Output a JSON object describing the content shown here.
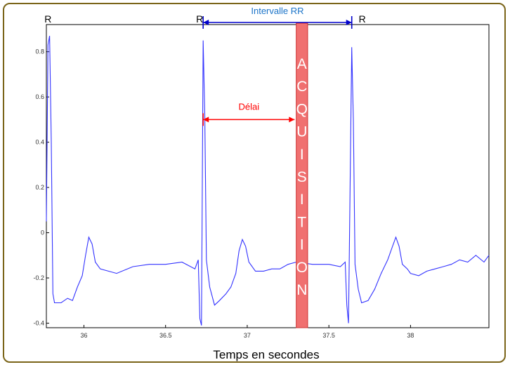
{
  "chart_data": {
    "type": "line",
    "title": "",
    "xlabel": "Temps en secondes",
    "ylabel": "",
    "xlim": [
      35.77,
      38.48
    ],
    "ylim": [
      -0.42,
      0.92
    ],
    "x_ticks": [
      36,
      36.5,
      37,
      37.5,
      38
    ],
    "x_tick_labels": [
      "36",
      "36.5",
      "37",
      "37.5",
      "38"
    ],
    "y_ticks": [
      -0.4,
      -0.2,
      0,
      0.2,
      0.4,
      0.6,
      0.8
    ],
    "y_tick_labels": [
      "-0.4",
      "-0.2",
      "0",
      "0.2",
      "0.4",
      "0.6",
      "0.8"
    ],
    "grid": false,
    "series": [
      {
        "name": "",
        "color": "#3333ff",
        "points": [
          [
            35.77,
            0.05
          ],
          [
            35.78,
            0.83
          ],
          [
            35.79,
            0.87
          ],
          [
            35.8,
            0.4
          ],
          [
            35.81,
            -0.27
          ],
          [
            35.82,
            -0.31
          ],
          [
            35.86,
            -0.31
          ],
          [
            35.9,
            -0.29
          ],
          [
            35.93,
            -0.3
          ],
          [
            35.96,
            -0.24
          ],
          [
            35.99,
            -0.19
          ],
          [
            36.01,
            -0.1
          ],
          [
            36.03,
            -0.02
          ],
          [
            36.05,
            -0.05
          ],
          [
            36.07,
            -0.13
          ],
          [
            36.1,
            -0.16
          ],
          [
            36.15,
            -0.17
          ],
          [
            36.2,
            -0.18
          ],
          [
            36.3,
            -0.15
          ],
          [
            36.4,
            -0.14
          ],
          [
            36.5,
            -0.14
          ],
          [
            36.6,
            -0.13
          ],
          [
            36.68,
            -0.16
          ],
          [
            36.7,
            -0.12
          ],
          [
            36.71,
            -0.38
          ],
          [
            36.72,
            -0.41
          ],
          [
            36.73,
            0.85
          ],
          [
            36.74,
            0.52
          ],
          [
            36.75,
            -0.12
          ],
          [
            36.77,
            -0.24
          ],
          [
            36.8,
            -0.32
          ],
          [
            36.83,
            -0.3
          ],
          [
            36.87,
            -0.27
          ],
          [
            36.9,
            -0.24
          ],
          [
            36.93,
            -0.18
          ],
          [
            36.95,
            -0.08
          ],
          [
            36.97,
            -0.03
          ],
          [
            36.99,
            -0.06
          ],
          [
            37.01,
            -0.13
          ],
          [
            37.05,
            -0.17
          ],
          [
            37.1,
            -0.17
          ],
          [
            37.15,
            -0.16
          ],
          [
            37.2,
            -0.16
          ],
          [
            37.25,
            -0.14
          ],
          [
            37.3,
            -0.13
          ],
          [
            37.4,
            -0.14
          ],
          [
            37.5,
            -0.14
          ],
          [
            37.57,
            -0.15
          ],
          [
            37.6,
            -0.13
          ],
          [
            37.61,
            -0.32
          ],
          [
            37.62,
            -0.4
          ],
          [
            37.64,
            0.82
          ],
          [
            37.65,
            0.5
          ],
          [
            37.66,
            -0.14
          ],
          [
            37.68,
            -0.25
          ],
          [
            37.7,
            -0.31
          ],
          [
            37.74,
            -0.3
          ],
          [
            37.78,
            -0.25
          ],
          [
            37.82,
            -0.18
          ],
          [
            37.86,
            -0.12
          ],
          [
            37.89,
            -0.06
          ],
          [
            37.91,
            -0.02
          ],
          [
            37.93,
            -0.06
          ],
          [
            37.95,
            -0.14
          ],
          [
            37.98,
            -0.16
          ],
          [
            38.0,
            -0.18
          ],
          [
            38.05,
            -0.19
          ],
          [
            38.1,
            -0.17
          ],
          [
            38.15,
            -0.16
          ],
          [
            38.2,
            -0.15
          ],
          [
            38.25,
            -0.14
          ],
          [
            38.3,
            -0.12
          ],
          [
            38.35,
            -0.13
          ],
          [
            38.4,
            -0.1
          ],
          [
            38.45,
            -0.13
          ],
          [
            38.48,
            -0.1
          ]
        ]
      }
    ],
    "r_peaks": [
      {
        "label": "R",
        "x": 35.78
      },
      {
        "label": "R",
        "x": 36.73
      },
      {
        "label": "R",
        "x": 37.64
      }
    ],
    "annotations": {
      "rr_interval": {
        "label": "Intervalle RR",
        "x_start": 36.73,
        "x_end": 37.64,
        "color": "#0000cc",
        "label_color": "#1a73c8"
      },
      "delay": {
        "label": "Délai",
        "x_start": 36.73,
        "x_end": 37.29,
        "y": 0.5,
        "color": "#ff0000"
      },
      "acquisition": {
        "label": "ACQUISITION",
        "x_start": 37.3,
        "x_end": 37.37,
        "color": "#f07070",
        "border_color": "#cc3333"
      }
    },
    "frame_color": "#7a6418"
  }
}
